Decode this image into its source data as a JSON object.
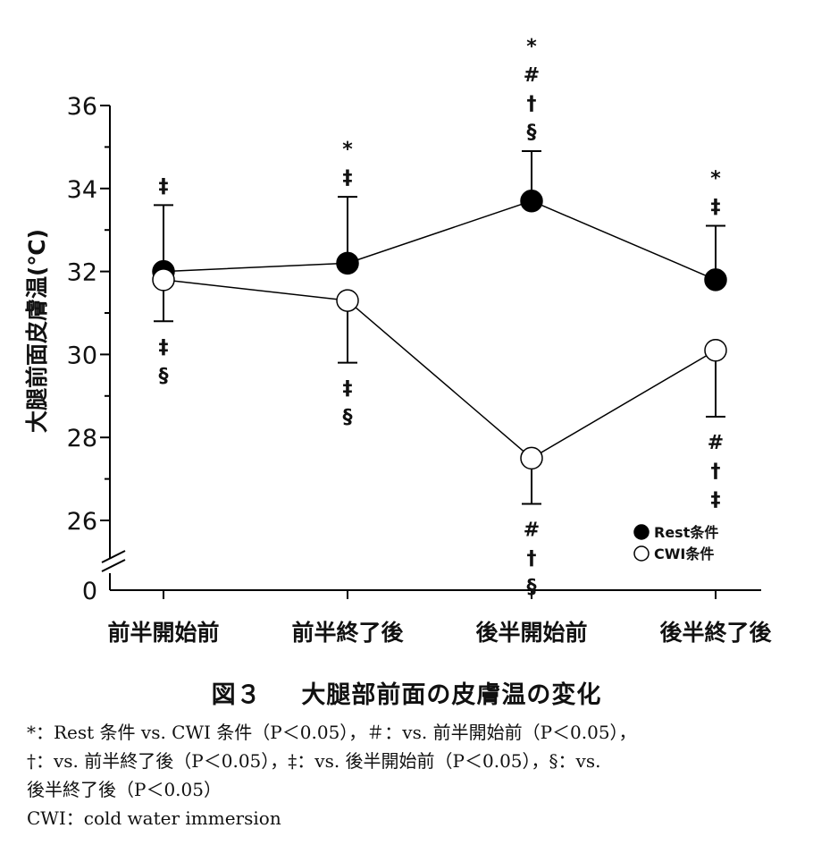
{
  "chart_data": {
    "type": "line",
    "ylabel": "大腿前面皮膚温(℃)",
    "categories": [
      "前半開始前",
      "前半終了後",
      "後半開始前",
      "後半終了後"
    ],
    "yticks": [
      0,
      26,
      28,
      30,
      32,
      34,
      36
    ],
    "ylim": [
      26,
      36
    ],
    "axis_break": true,
    "series": [
      {
        "name": "Rest条件",
        "marker": "filled",
        "color": "#000000",
        "values": [
          32.0,
          32.2,
          33.7,
          31.8
        ],
        "error_up": [
          33.6,
          33.8,
          34.9,
          33.1
        ],
        "annotations": [
          [
            "‡"
          ],
          [
            "*",
            "‡"
          ],
          [
            "*",
            "#",
            "†",
            "§"
          ],
          [
            "*",
            "‡"
          ]
        ]
      },
      {
        "name": "CWI条件",
        "marker": "open",
        "color": "#000000",
        "values": [
          31.8,
          31.3,
          27.5,
          30.1
        ],
        "error_down": [
          30.8,
          29.8,
          26.4,
          28.5
        ],
        "annotations": [
          [
            "‡",
            "§"
          ],
          [
            "‡",
            "§"
          ],
          [
            "#",
            "†",
            "§"
          ],
          [
            "#",
            "†",
            "‡"
          ]
        ]
      }
    ],
    "legend_position": "bottom-right"
  },
  "caption": {
    "fig_num": "図３",
    "title": "大腿部前面の皮膚温の変化"
  },
  "notes": [
    "*：Rest 条件 vs. CWI 条件（P＜0.05），＃：vs. 前半開始前（P＜0.05），",
    "†：vs. 前半終了後（P＜0.05），‡：vs. 後半開始前（P＜0.05），§：vs.",
    "後半終了後（P＜0.05）",
    "CWI：cold water immersion"
  ]
}
